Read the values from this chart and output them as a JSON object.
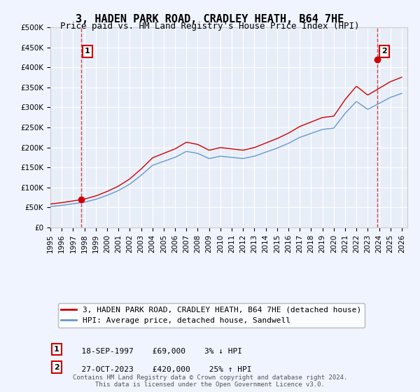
{
  "title": "3, HADEN PARK ROAD, CRADLEY HEATH, B64 7HE",
  "subtitle": "Price paid vs. HM Land Registry's House Price Index (HPI)",
  "xlabel": "",
  "ylabel": "",
  "ylim": [
    0,
    500000
  ],
  "yticks": [
    0,
    50000,
    100000,
    150000,
    200000,
    250000,
    300000,
    350000,
    400000,
    450000,
    500000
  ],
  "ytick_labels": [
    "£0",
    "£50K",
    "£100K",
    "£150K",
    "£200K",
    "£250K",
    "£300K",
    "£350K",
    "£400K",
    "£450K",
    "£500K"
  ],
  "xlim_start": 1995.0,
  "xlim_end": 2026.5,
  "xticks": [
    1995,
    1996,
    1997,
    1998,
    1999,
    2000,
    2001,
    2002,
    2003,
    2004,
    2005,
    2006,
    2007,
    2008,
    2009,
    2010,
    2011,
    2012,
    2013,
    2014,
    2015,
    2016,
    2017,
    2018,
    2019,
    2020,
    2021,
    2022,
    2023,
    2024,
    2025,
    2026
  ],
  "transaction1_x": 1997.72,
  "transaction1_y": 69000,
  "transaction1_label": "1",
  "transaction1_date": "18-SEP-1997",
  "transaction1_price": "£69,000",
  "transaction1_hpi": "3% ↓ HPI",
  "transaction2_x": 2023.83,
  "transaction2_y": 420000,
  "transaction2_label": "2",
  "transaction2_date": "27-OCT-2023",
  "transaction2_price": "£420,000",
  "transaction2_hpi": "25% ↑ HPI",
  "line_color_property": "#cc0000",
  "line_color_hpi": "#6699cc",
  "background_color": "#f0f4ff",
  "plot_bg_color": "#e8eef8",
  "grid_color": "#ffffff",
  "legend_label_property": "3, HADEN PARK ROAD, CRADLEY HEATH, B64 7HE (detached house)",
  "legend_label_hpi": "HPI: Average price, detached house, Sandwell",
  "footer": "Contains HM Land Registry data © Crown copyright and database right 2024.\nThis data is licensed under the Open Government Licence v3.0.",
  "title_fontsize": 11,
  "subtitle_fontsize": 9,
  "tick_fontsize": 7.5,
  "legend_fontsize": 8
}
